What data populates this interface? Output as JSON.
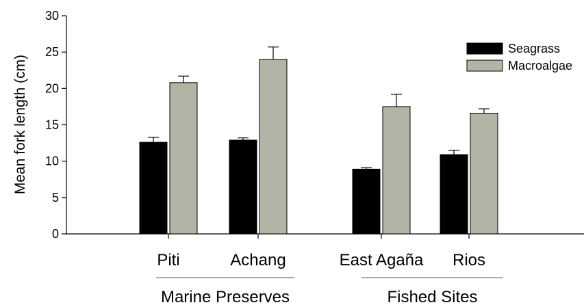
{
  "chart_data": {
    "type": "bar",
    "title": "",
    "xlabel": "",
    "ylabel": "Mean fork length (cm)",
    "ylim": [
      0,
      30
    ],
    "yticks": [
      0,
      5,
      10,
      15,
      20,
      25,
      30
    ],
    "categories": [
      "Piti",
      "Achang",
      "East Agaña",
      "Rios"
    ],
    "groups": [
      {
        "label": "Marine Preserves",
        "categories": [
          "Piti",
          "Achang"
        ]
      },
      {
        "label": "Fished Sites",
        "categories": [
          "East Agaña",
          "Rios"
        ]
      }
    ],
    "series": [
      {
        "name": "Seagrass",
        "color": "#000000",
        "values": [
          12.6,
          12.9,
          8.9,
          10.9
        ],
        "errors": [
          0.7,
          0.3,
          0.2,
          0.6
        ]
      },
      {
        "name": "Macroalgae",
        "color": "#b3b3a6",
        "values": [
          20.8,
          24.0,
          17.5,
          16.6
        ],
        "errors": [
          0.9,
          1.7,
          1.7,
          0.6
        ]
      }
    ],
    "legend_position": "top-right",
    "grid": false
  }
}
